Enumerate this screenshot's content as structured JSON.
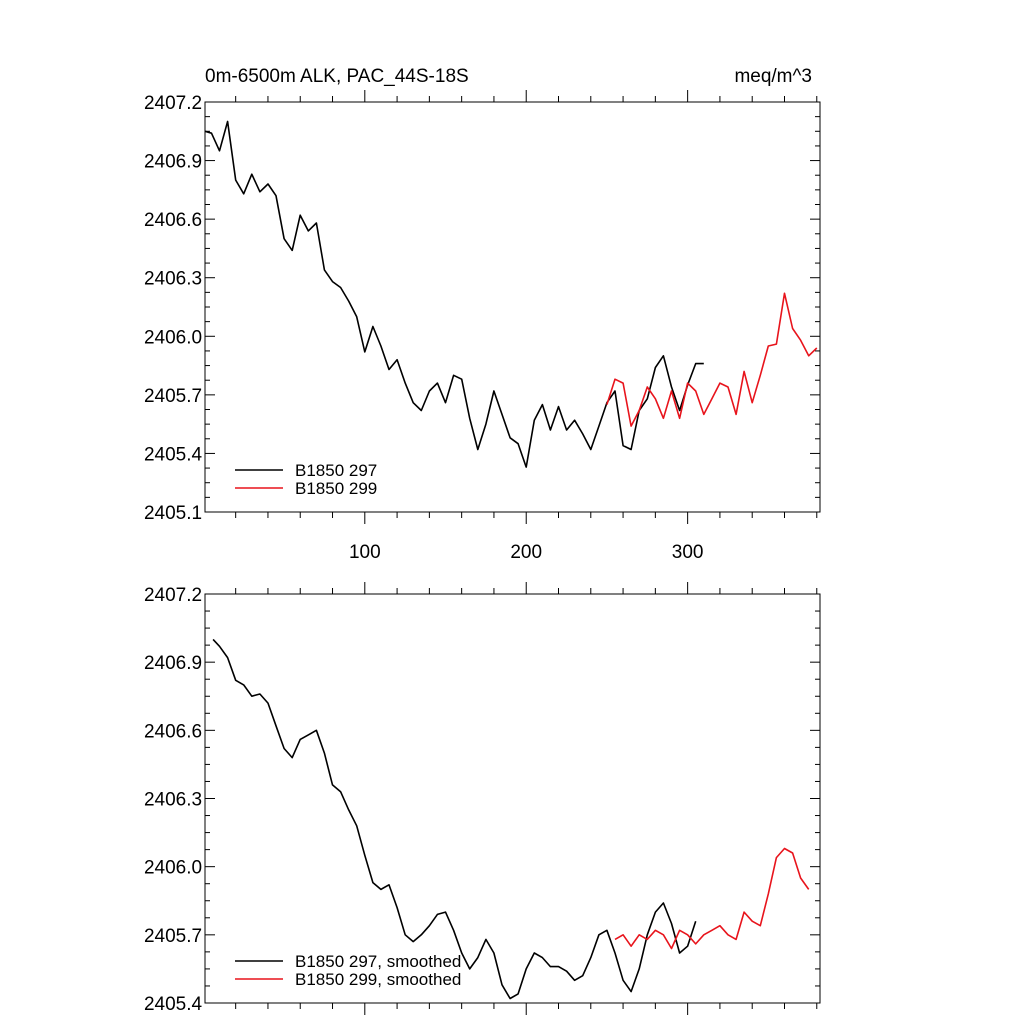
{
  "chart_data": [
    {
      "type": "line",
      "title": "0m-6500m ALK, PAC_44S-18S",
      "units": "meq/m^3",
      "xlim": [
        1,
        382
      ],
      "ylim": [
        2405.1,
        2407.2
      ],
      "xticks": [
        100,
        200,
        300
      ],
      "yticks": [
        2405.1,
        2405.4,
        2405.7,
        2406.0,
        2406.3,
        2406.6,
        2406.9,
        2407.2
      ],
      "ytick_labels": [
        "2405.1",
        "2405.4",
        "2405.7",
        "2406.0",
        "2406.3",
        "2406.6",
        "2406.9",
        "2407.2"
      ],
      "xtick_labels": [
        "100",
        "200",
        "300"
      ],
      "legend_position": "bottom-left",
      "series": [
        {
          "name": "B1850 297",
          "color": "#000000",
          "x": [
            1,
            5,
            10,
            15,
            20,
            25,
            30,
            35,
            40,
            45,
            50,
            55,
            60,
            65,
            70,
            75,
            80,
            85,
            90,
            95,
            100,
            105,
            110,
            115,
            120,
            125,
            130,
            135,
            140,
            145,
            150,
            155,
            160,
            165,
            170,
            175,
            180,
            185,
            190,
            195,
            200,
            205,
            210,
            215,
            220,
            225,
            230,
            235,
            240,
            245,
            250,
            255,
            260,
            265,
            270,
            275,
            280,
            285,
            290,
            295,
            300,
            305,
            310
          ],
          "y": [
            2407.05,
            2407.04,
            2406.95,
            2407.1,
            2406.8,
            2406.73,
            2406.83,
            2406.74,
            2406.78,
            2406.72,
            2406.5,
            2406.44,
            2406.62,
            2406.54,
            2406.58,
            2406.34,
            2406.28,
            2406.25,
            2406.18,
            2406.1,
            2405.92,
            2406.05,
            2405.95,
            2405.83,
            2405.88,
            2405.76,
            2405.66,
            2405.62,
            2405.72,
            2405.76,
            2405.66,
            2405.8,
            2405.78,
            2405.58,
            2405.42,
            2405.55,
            2405.72,
            2405.6,
            2405.48,
            2405.45,
            2405.33,
            2405.57,
            2405.65,
            2405.52,
            2405.64,
            2405.52,
            2405.57,
            2405.5,
            2405.42,
            2405.54,
            2405.66,
            2405.72,
            2405.44,
            2405.42,
            2405.62,
            2405.68,
            2405.84,
            2405.9,
            2405.74,
            2405.62,
            2405.75,
            2405.86,
            2405.86
          ]
        },
        {
          "name": "B1850 299",
          "color": "#e8141c",
          "x": [
            250,
            255,
            260,
            265,
            270,
            275,
            280,
            285,
            290,
            295,
            300,
            305,
            310,
            315,
            320,
            325,
            330,
            335,
            340,
            345,
            350,
            355,
            360,
            365,
            370,
            375,
            380
          ],
          "y": [
            2405.65,
            2405.78,
            2405.76,
            2405.54,
            2405.62,
            2405.74,
            2405.68,
            2405.58,
            2405.72,
            2405.58,
            2405.76,
            2405.72,
            2405.6,
            2405.68,
            2405.76,
            2405.74,
            2405.6,
            2405.82,
            2405.66,
            2405.8,
            2405.95,
            2405.96,
            2406.22,
            2406.04,
            2405.98,
            2405.9,
            2405.94
          ]
        }
      ]
    },
    {
      "type": "line",
      "title": "",
      "xlim": [
        1,
        382
      ],
      "ylim": [
        2405.4,
        2407.2
      ],
      "xticks": [
        100,
        200,
        300
      ],
      "yticks": [
        2405.4,
        2405.7,
        2406.0,
        2406.3,
        2406.6,
        2406.9,
        2407.2
      ],
      "ytick_labels": [
        "2405.4",
        "2405.7",
        "2406.0",
        "2406.3",
        "2406.6",
        "2406.9",
        "2407.2"
      ],
      "legend_position": "bottom-left",
      "series": [
        {
          "name": "B1850 297, smoothed",
          "color": "#000000",
          "x": [
            6,
            10,
            15,
            20,
            25,
            30,
            35,
            40,
            45,
            50,
            55,
            60,
            65,
            70,
            75,
            80,
            85,
            90,
            95,
            100,
            105,
            110,
            115,
            120,
            125,
            130,
            135,
            140,
            145,
            150,
            155,
            160,
            165,
            170,
            175,
            180,
            185,
            190,
            195,
            200,
            205,
            210,
            215,
            220,
            225,
            230,
            235,
            240,
            245,
            250,
            255,
            260,
            265,
            270,
            275,
            280,
            285,
            290,
            295,
            300,
            305
          ],
          "y": [
            2407.0,
            2406.97,
            2406.92,
            2406.82,
            2406.8,
            2406.75,
            2406.76,
            2406.72,
            2406.62,
            2406.52,
            2406.48,
            2406.56,
            2406.58,
            2406.6,
            2406.5,
            2406.36,
            2406.33,
            2406.25,
            2406.18,
            2406.05,
            2405.93,
            2405.9,
            2405.92,
            2405.82,
            2405.7,
            2405.67,
            2405.7,
            2405.74,
            2405.79,
            2405.8,
            2405.72,
            2405.62,
            2405.55,
            2405.6,
            2405.68,
            2405.62,
            2405.48,
            2405.42,
            2405.44,
            2405.55,
            2405.62,
            2405.6,
            2405.56,
            2405.56,
            2405.54,
            2405.5,
            2405.52,
            2405.6,
            2405.7,
            2405.72,
            2405.62,
            2405.5,
            2405.45,
            2405.55,
            2405.7,
            2405.8,
            2405.84,
            2405.75,
            2405.62,
            2405.65,
            2405.76
          ]
        },
        {
          "name": "B1850 299, smoothed",
          "color": "#e8141c",
          "x": [
            255,
            260,
            265,
            270,
            275,
            280,
            285,
            290,
            295,
            300,
            305,
            310,
            315,
            320,
            325,
            330,
            335,
            340,
            345,
            350,
            355,
            360,
            365,
            370,
            375
          ],
          "y": [
            2405.68,
            2405.7,
            2405.65,
            2405.7,
            2405.68,
            2405.72,
            2405.7,
            2405.64,
            2405.72,
            2405.7,
            2405.66,
            2405.7,
            2405.72,
            2405.74,
            2405.7,
            2405.68,
            2405.8,
            2405.76,
            2405.74,
            2405.88,
            2406.04,
            2406.08,
            2406.06,
            2405.95,
            2405.9
          ]
        }
      ]
    }
  ]
}
